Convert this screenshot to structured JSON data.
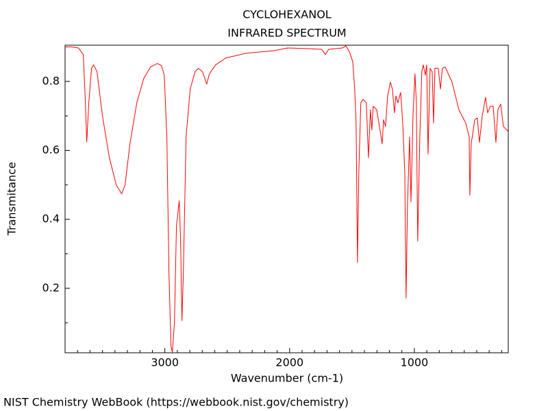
{
  "chart_data": {
    "type": "line",
    "title": "CYCLOHEXANOL",
    "subtitle": "INFRARED SPECTRUM",
    "x_label": "Wavenumber (cm-1)",
    "y_label": "Transmitance",
    "source": "NIST Chemistry WebBook (https://webbook.nist.gov/chemistry)",
    "color": "#ff0000",
    "xlim": [
      3800,
      247
    ],
    "ylim": [
      0.013,
      0.905
    ],
    "xticks": [
      3000,
      2000,
      1000
    ],
    "yticks": [
      0.2,
      0.4,
      0.6,
      0.8
    ],
    "xminorticks": [
      3700,
      3600,
      3500,
      3400,
      3300,
      3200,
      3100,
      2900,
      2800,
      2700,
      2600,
      2500,
      2400,
      2300,
      2200,
      2100,
      1900,
      1800,
      1700,
      1600,
      1500,
      1400,
      1300,
      1200,
      1100,
      900,
      800,
      700,
      600,
      500,
      400,
      300
    ],
    "yminorticks": [
      0.1,
      0.3,
      0.5,
      0.7,
      0.9
    ],
    "x": [
      3800,
      3747,
      3692,
      3654,
      3637,
      3626,
      3610,
      3588,
      3571,
      3544,
      3500,
      3445,
      3390,
      3346,
      3319,
      3280,
      3225,
      3170,
      3115,
      3060,
      3027,
      3005,
      2984,
      2967,
      2951,
      2940,
      2923,
      2907,
      2885,
      2874,
      2863,
      2852,
      2830,
      2797,
      2758,
      2731,
      2698,
      2665,
      2643,
      2593,
      2511,
      2346,
      2126,
      2016,
      1852,
      1742,
      1714,
      1687,
      1577,
      1549,
      1522,
      1494,
      1478,
      1467,
      1456,
      1445,
      1429,
      1412,
      1385,
      1368,
      1352,
      1341,
      1330,
      1302,
      1275,
      1258,
      1247,
      1231,
      1214,
      1192,
      1176,
      1159,
      1148,
      1132,
      1110,
      1093,
      1077,
      1066,
      1055,
      1038,
      1027,
      1011,
      995,
      984,
      973,
      956,
      940,
      929,
      912,
      901,
      890,
      874,
      857,
      846,
      835,
      808,
      791,
      775,
      753,
      698,
      643,
      588,
      560,
      555,
      544,
      516,
      495,
      478,
      456,
      429,
      412,
      390,
      368,
      346,
      330,
      308,
      286,
      247
    ],
    "values": [
      0.9,
      0.9,
      0.897,
      0.878,
      0.738,
      0.625,
      0.738,
      0.838,
      0.848,
      0.828,
      0.699,
      0.579,
      0.5,
      0.474,
      0.5,
      0.619,
      0.738,
      0.808,
      0.842,
      0.852,
      0.846,
      0.818,
      0.639,
      0.241,
      0.032,
      0.015,
      0.102,
      0.381,
      0.454,
      0.341,
      0.106,
      0.241,
      0.639,
      0.778,
      0.828,
      0.838,
      0.828,
      0.792,
      0.822,
      0.848,
      0.868,
      0.882,
      0.889,
      0.897,
      0.895,
      0.893,
      0.878,
      0.893,
      0.897,
      0.903,
      0.887,
      0.858,
      0.778,
      0.679,
      0.275,
      0.54,
      0.738,
      0.748,
      0.738,
      0.579,
      0.718,
      0.659,
      0.728,
      0.718,
      0.659,
      0.619,
      0.689,
      0.669,
      0.758,
      0.798,
      0.778,
      0.709,
      0.758,
      0.738,
      0.768,
      0.679,
      0.54,
      0.172,
      0.44,
      0.639,
      0.45,
      0.699,
      0.822,
      0.738,
      0.337,
      0.639,
      0.828,
      0.848,
      0.818,
      0.848,
      0.589,
      0.838,
      0.828,
      0.679,
      0.838,
      0.838,
      0.778,
      0.838,
      0.842,
      0.798,
      0.718,
      0.679,
      0.639,
      0.47,
      0.619,
      0.689,
      0.694,
      0.623,
      0.699,
      0.754,
      0.709,
      0.728,
      0.728,
      0.623,
      0.718,
      0.734,
      0.669,
      0.655
    ]
  }
}
